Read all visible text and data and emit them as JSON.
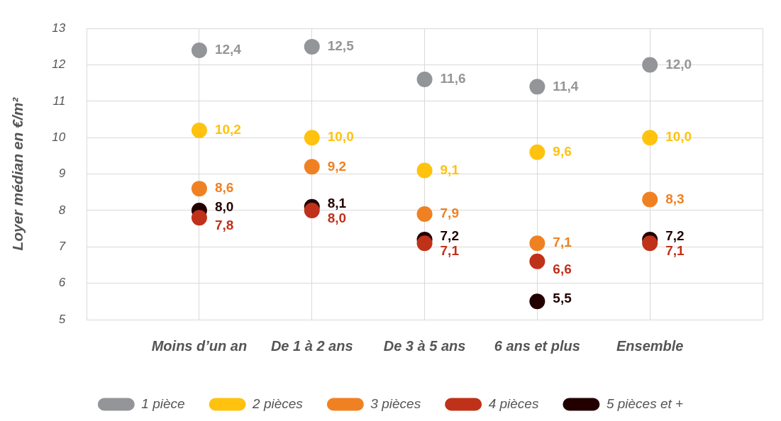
{
  "chart_data": {
    "type": "scatter",
    "ylabel": "Loyer médian en €/m²",
    "categories": [
      "Moins d’un an",
      "De 1 à 2 ans",
      "De 3 à 5 ans",
      "6 ans et plus",
      "Ensemble"
    ],
    "series": [
      {
        "name": "1 pièce",
        "color": "#939598",
        "values": [
          12.4,
          12.5,
          11.6,
          11.4,
          12.0
        ],
        "value_labels": [
          "12,4",
          "12,5",
          "11,6",
          "11,4",
          "12,0"
        ]
      },
      {
        "name": "2 pièces",
        "color": "#ffc20e",
        "values": [
          10.2,
          10.0,
          9.1,
          9.6,
          10.0
        ],
        "value_labels": [
          "10,2",
          "10,0",
          "9,1",
          "9,6",
          "10,0"
        ]
      },
      {
        "name": "3 pièces",
        "color": "#f08122",
        "values": [
          8.6,
          9.2,
          7.9,
          7.1,
          8.3
        ],
        "value_labels": [
          "8,6",
          "9,2",
          "7,9",
          "7,1",
          "8,3"
        ]
      },
      {
        "name": "4 pièces",
        "color": "#c0311a",
        "values": [
          7.8,
          8.0,
          7.1,
          6.6,
          7.1
        ],
        "value_labels": [
          "7,8",
          "8,0",
          "7,1",
          "6,6",
          "7,1"
        ]
      },
      {
        "name": "5 pièces et +",
        "color": "#230000",
        "values": [
          8.0,
          8.1,
          7.2,
          5.5,
          7.2
        ],
        "value_labels": [
          "8,0",
          "8,1",
          "7,2",
          "5,5",
          "7,2"
        ]
      }
    ],
    "ylim": [
      5,
      13
    ],
    "yticks": [
      5,
      6,
      7,
      8,
      9,
      10,
      11,
      12,
      13
    ],
    "grid": true,
    "legend": "bottom",
    "marker": "circle"
  }
}
